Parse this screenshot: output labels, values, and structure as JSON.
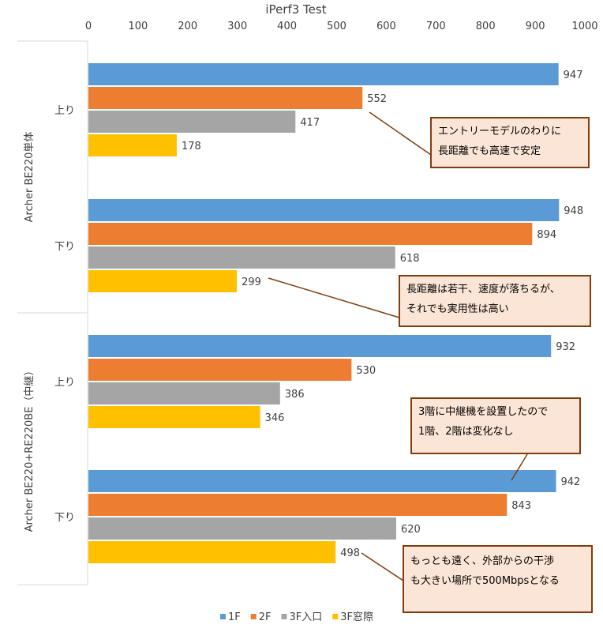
{
  "chart_data": {
    "type": "bar",
    "orientation": "horizontal",
    "title": "iPerf3 Test",
    "xlim": [
      0,
      1000
    ],
    "xticks": [
      "0",
      "100",
      "200",
      "300",
      "400",
      "500",
      "600",
      "700",
      "800",
      "900",
      "1000"
    ],
    "groups": [
      {
        "label": "Archer BE220単体",
        "categories": [
          {
            "label": "上り",
            "values": [
              947,
              552,
              417,
              178
            ]
          },
          {
            "label": "下り",
            "values": [
              948,
              894,
              618,
              299
            ]
          }
        ]
      },
      {
        "label": "Archer BE220+RE220BE（中継）",
        "categories": [
          {
            "label": "上り",
            "values": [
              932,
              530,
              386,
              346
            ]
          },
          {
            "label": "下り",
            "values": [
              942,
              843,
              620,
              498
            ]
          }
        ]
      }
    ],
    "series": [
      {
        "name": "1F",
        "color": "#5b9bd5"
      },
      {
        "name": "2F",
        "color": "#ed7d31"
      },
      {
        "name": "3F入口",
        "color": "#a5a5a5"
      },
      {
        "name": "3F窓際",
        "color": "#ffc000"
      }
    ],
    "legend": "bottom",
    "annotations": [
      {
        "lines": [
          "エントリーモデルのわりに",
          "長距離でも高速で安定"
        ]
      },
      {
        "lines": [
          "長距離は若干、速度が落ちるが、",
          "それでも実用性は高い"
        ]
      },
      {
        "lines": [
          "3階に中継機を設置したので",
          "1階、2階は変化なし"
        ]
      },
      {
        "lines": [
          "もっとも遠く、外部からの干渉",
          "も大きい場所で500Mbpsとなる"
        ]
      }
    ]
  }
}
